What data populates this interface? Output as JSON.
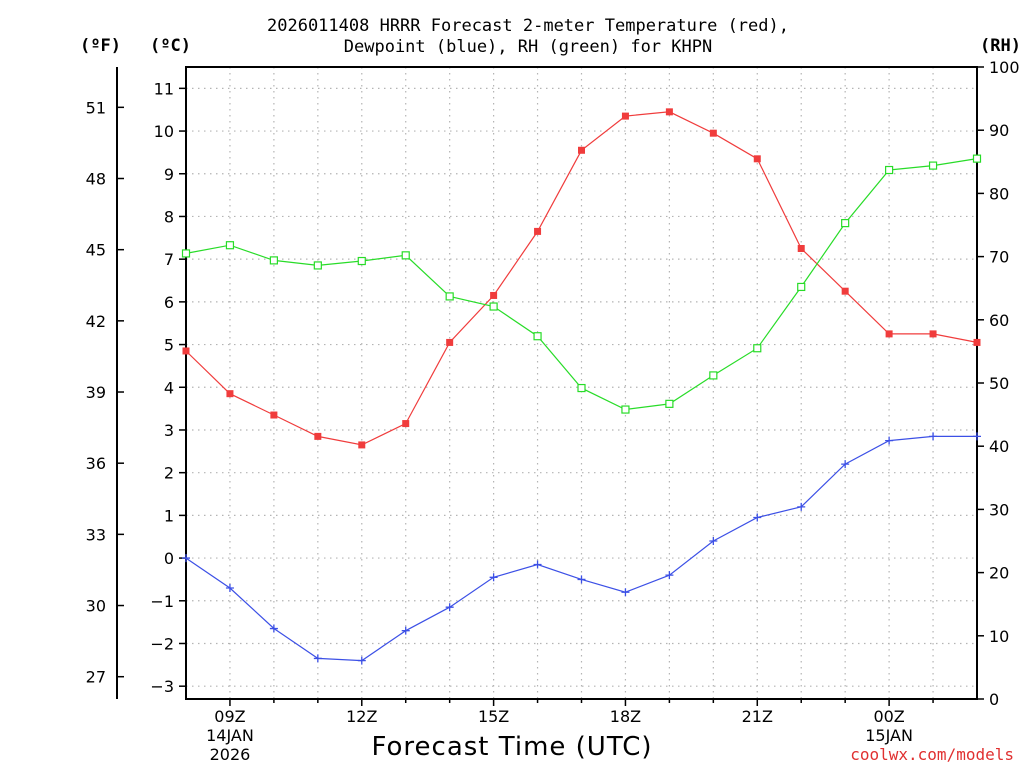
{
  "chart_data": {
    "type": "line",
    "title_line1": "2026011408 HRRR Forecast 2-meter Temperature (red),",
    "title_line2": "Dewpoint (blue), RH (green) for KHPN",
    "xlabel": "Forecast Time (UTC)",
    "credit": "coolwx.com/models",
    "units": {
      "fahrenheit": "(ºF)",
      "celsius": "(ºC)",
      "rh": "(RH)"
    },
    "x": [
      "08Z",
      "09Z",
      "10Z",
      "11Z",
      "12Z",
      "13Z",
      "14Z",
      "15Z",
      "16Z",
      "17Z",
      "18Z",
      "19Z",
      "20Z",
      "21Z",
      "22Z",
      "23Z",
      "00Z",
      "01Z",
      "02Z"
    ],
    "x_ticks": [
      {
        "label": "09Z",
        "sub1": "14JAN",
        "sub2": "2026",
        "index": 1
      },
      {
        "label": "12Z",
        "sub1": "",
        "sub2": "",
        "index": 4
      },
      {
        "label": "15Z",
        "sub1": "",
        "sub2": "",
        "index": 7
      },
      {
        "label": "18Z",
        "sub1": "",
        "sub2": "",
        "index": 10
      },
      {
        "label": "21Z",
        "sub1": "",
        "sub2": "",
        "index": 13
      },
      {
        "label": "00Z",
        "sub1": "15JAN",
        "sub2": "",
        "index": 16
      }
    ],
    "celsius_axis": {
      "ylim": [
        -3.3,
        11.5
      ],
      "ticks": [
        -3,
        -2,
        -1,
        0,
        1,
        2,
        3,
        4,
        5,
        6,
        7,
        8,
        9,
        10,
        11
      ]
    },
    "fahrenheit_axis": {
      "ticks": [
        27,
        30,
        33,
        36,
        39,
        42,
        45,
        48,
        51
      ]
    },
    "rh_axis": {
      "ylim": [
        0,
        100
      ],
      "ticks": [
        0,
        10,
        20,
        30,
        40,
        50,
        60,
        70,
        80,
        90,
        100
      ]
    },
    "series": [
      {
        "name": "Temperature",
        "color": "#f03c3c",
        "marker": "filled-square",
        "axis": "celsius",
        "values": [
          4.85,
          3.85,
          3.35,
          2.85,
          2.65,
          3.15,
          5.05,
          6.15,
          7.65,
          9.55,
          10.35,
          10.45,
          9.95,
          9.35,
          7.25,
          6.25,
          5.25,
          5.25,
          5.05
        ]
      },
      {
        "name": "Dewpoint",
        "color": "#3c50e6",
        "marker": "plus",
        "axis": "celsius",
        "values": [
          0.0,
          -0.7,
          -1.65,
          -2.35,
          -2.4,
          -1.7,
          -1.15,
          -0.45,
          -0.15,
          -0.5,
          -0.8,
          -0.4,
          0.4,
          0.95,
          1.2,
          2.2,
          2.75,
          2.85,
          2.85
        ]
      },
      {
        "name": "RH",
        "color": "#28dc28",
        "marker": "open-square",
        "axis": "rh",
        "values": [
          70.5,
          71.8,
          69.4,
          68.6,
          69.3,
          70.2,
          63.7,
          62.1,
          57.4,
          49.2,
          45.8,
          46.7,
          51.2,
          55.5,
          65.2,
          75.3,
          83.7,
          84.4,
          85.5
        ]
      }
    ]
  }
}
